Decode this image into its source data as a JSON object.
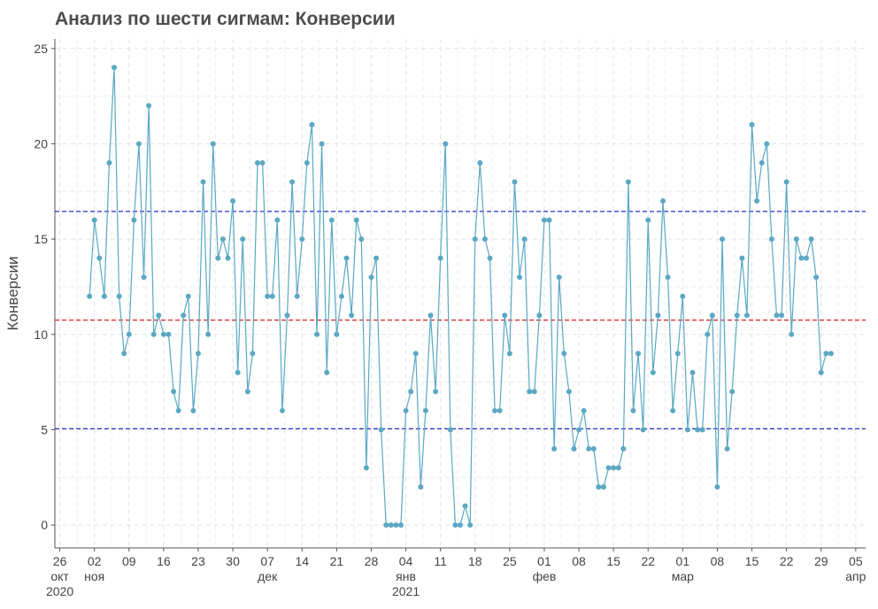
{
  "chart_data": {
    "type": "line",
    "title": "Анализ по шести сигмам: Конверсии",
    "xlabel": "",
    "ylabel": "Конверсии",
    "ylim": [
      -1.2,
      25.5
    ],
    "y_ticks": [
      0,
      5,
      10,
      15,
      20,
      25
    ],
    "grid": true,
    "x_ticks": [
      {
        "date": "2020-10-26",
        "day": "26",
        "month": "окт",
        "year": "2020"
      },
      {
        "date": "2020-11-02",
        "day": "02",
        "month": "ноя",
        "year": ""
      },
      {
        "date": "2020-11-09",
        "day": "09",
        "month": "",
        "year": ""
      },
      {
        "date": "2020-11-16",
        "day": "16",
        "month": "",
        "year": ""
      },
      {
        "date": "2020-11-23",
        "day": "23",
        "month": "",
        "year": ""
      },
      {
        "date": "2020-11-30",
        "day": "30",
        "month": "",
        "year": ""
      },
      {
        "date": "2020-12-07",
        "day": "07",
        "month": "дек",
        "year": ""
      },
      {
        "date": "2020-12-14",
        "day": "14",
        "month": "",
        "year": ""
      },
      {
        "date": "2020-12-21",
        "day": "21",
        "month": "",
        "year": ""
      },
      {
        "date": "2020-12-28",
        "day": "28",
        "month": "",
        "year": ""
      },
      {
        "date": "2021-01-04",
        "day": "04",
        "month": "янв",
        "year": "2021"
      },
      {
        "date": "2021-01-11",
        "day": "11",
        "month": "",
        "year": ""
      },
      {
        "date": "2021-01-18",
        "day": "18",
        "month": "",
        "year": ""
      },
      {
        "date": "2021-01-25",
        "day": "25",
        "month": "",
        "year": ""
      },
      {
        "date": "2021-02-01",
        "day": "01",
        "month": "фев",
        "year": ""
      },
      {
        "date": "2021-02-08",
        "day": "08",
        "month": "",
        "year": ""
      },
      {
        "date": "2021-02-15",
        "day": "15",
        "month": "",
        "year": ""
      },
      {
        "date": "2021-02-22",
        "day": "22",
        "month": "",
        "year": ""
      },
      {
        "date": "2021-03-01",
        "day": "01",
        "month": "мар",
        "year": ""
      },
      {
        "date": "2021-03-08",
        "day": "08",
        "month": "",
        "year": ""
      },
      {
        "date": "2021-03-15",
        "day": "15",
        "month": "",
        "year": ""
      },
      {
        "date": "2021-03-22",
        "day": "22",
        "month": "",
        "year": ""
      },
      {
        "date": "2021-03-29",
        "day": "29",
        "month": "",
        "year": ""
      },
      {
        "date": "2021-04-05",
        "day": "05",
        "month": "апр",
        "year": ""
      }
    ],
    "x_range": [
      "2020-10-25",
      "2021-04-07"
    ],
    "start_date": "2020-11-01",
    "series": [
      {
        "name": "",
        "color": "#5ba8c4",
        "values": [
          12,
          16,
          14,
          12,
          19,
          24,
          12,
          9,
          10,
          16,
          20,
          13,
          22,
          10,
          11,
          10,
          10,
          7,
          6,
          11,
          12,
          6,
          9,
          18,
          10,
          20,
          14,
          15,
          14,
          17,
          8,
          15,
          7,
          9,
          19,
          19,
          12,
          12,
          16,
          6,
          11,
          18,
          12,
          15,
          19,
          21,
          10,
          20,
          8,
          16,
          10,
          12,
          14,
          11,
          16,
          15,
          3,
          13,
          14,
          5,
          0,
          0,
          0,
          0,
          6,
          7,
          9,
          2,
          6,
          11,
          7,
          14,
          20,
          5,
          0,
          0,
          1,
          0,
          15,
          19,
          15,
          14,
          6,
          6,
          11,
          9,
          18,
          13,
          15,
          7,
          7,
          11,
          16,
          16,
          4,
          13,
          9,
          7,
          4,
          5,
          6,
          4,
          4,
          2,
          2,
          3,
          3,
          3,
          4,
          18,
          6,
          9,
          5,
          16,
          8,
          11,
          17,
          13,
          6,
          9,
          12,
          5,
          8,
          5,
          5,
          10,
          11,
          2,
          15,
          4,
          7,
          11,
          14,
          11,
          21,
          17,
          19,
          20,
          15,
          11,
          11,
          18,
          10,
          15,
          14,
          14,
          15,
          13,
          8,
          9,
          9
        ]
      }
    ],
    "reference_lines": [
      {
        "value": 16.45,
        "color": "#2b2bcf"
      },
      {
        "value": 10.75,
        "color": "#e0202a"
      },
      {
        "value": 5.05,
        "color": "#2b2bcf"
      }
    ]
  }
}
